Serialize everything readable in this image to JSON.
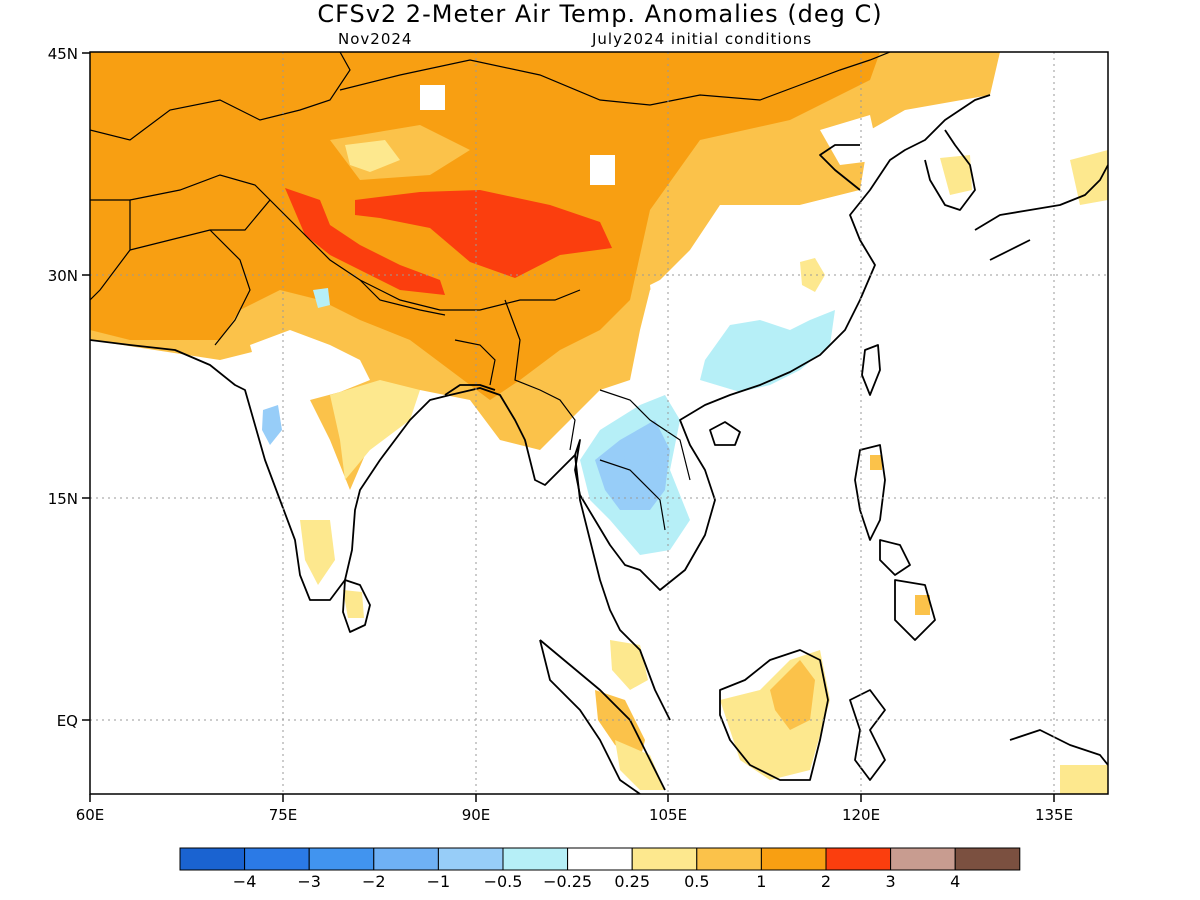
{
  "title": "CFSv2 2-Meter Air Temp. Anomalies (deg C)",
  "subtitle_left": "Nov2024",
  "subtitle_right": "July2024 initial conditions",
  "y_axis_labels": [
    "45N",
    "30N",
    "15N",
    "EQ"
  ],
  "x_axis_labels": [
    "60E",
    "75E",
    "90E",
    "105E",
    "120E",
    "135E"
  ],
  "colorbar": {
    "colors": [
      "#1a63d1",
      "#2b7ae6",
      "#4194ef",
      "#6fb1f5",
      "#97cdf8",
      "#b6eff7",
      "#ffffff",
      "#fde88e",
      "#fbc24a",
      "#f89f12",
      "#fb3e0e",
      "#c89c90",
      "#7b5040"
    ],
    "labels": [
      "−4",
      "−3",
      "−2",
      "−1",
      "−0.5",
      "−0.25",
      "0.25",
      "0.5",
      "1",
      "2",
      "3",
      "4"
    ]
  }
}
